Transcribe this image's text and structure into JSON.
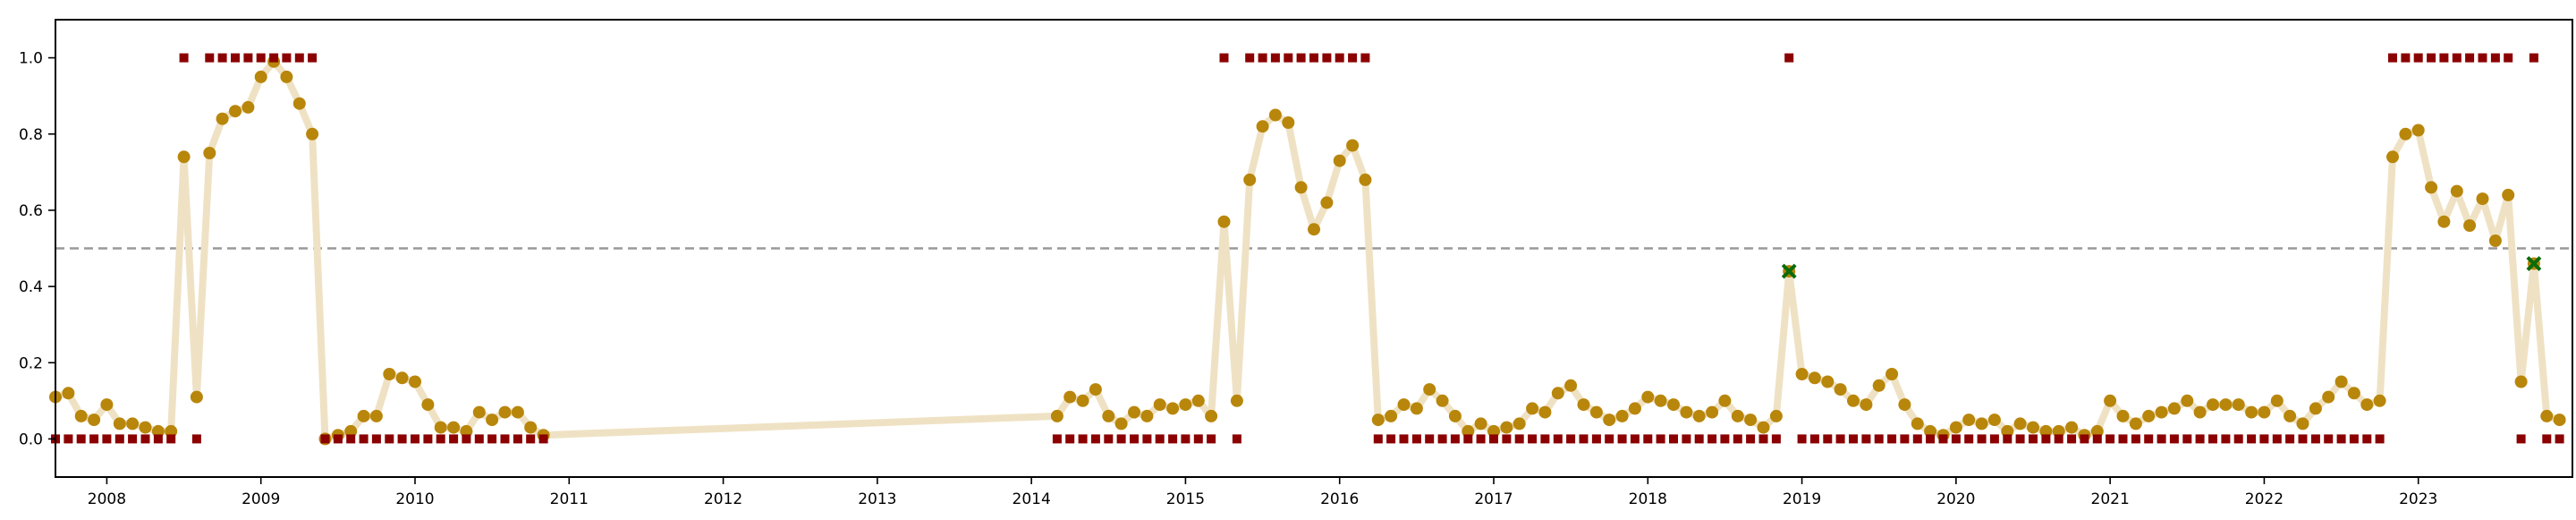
{
  "chart_data": {
    "type": "scatter",
    "title": "",
    "xlabel": "",
    "ylabel": "",
    "x_axis_kind": "date",
    "xlim": [
      "2007-09-01",
      "2023-12-31"
    ],
    "ylim": [
      -0.1,
      1.1
    ],
    "x_ticks": [
      "2008",
      "2009",
      "2010",
      "2011",
      "2012",
      "2013",
      "2014",
      "2015",
      "2016",
      "2017",
      "2018",
      "2019",
      "2020",
      "2021",
      "2022",
      "2023"
    ],
    "y_ticks": [
      "0.0",
      "0.2",
      "0.4",
      "0.6",
      "0.8",
      "1.0"
    ],
    "y_tick_values": [
      0.0,
      0.2,
      0.4,
      0.6,
      0.8,
      1.0
    ],
    "grid": false,
    "legend": "none",
    "threshold": {
      "value": 0.5,
      "style": "dashed",
      "color": "#999999"
    },
    "colors": {
      "line": "#efe2c4",
      "points": "#b8860b",
      "labels": "#8b0000",
      "misclassified": "#0b6b0b"
    },
    "series": [
      {
        "kind": "line",
        "x": [
          "2007-09",
          "2007-10",
          "2007-11",
          "2007-12",
          "2008-01",
          "2008-02",
          "2008-03",
          "2008-04",
          "2008-05",
          "2008-06",
          "2008-07",
          "2008-08",
          "2008-09",
          "2008-10",
          "2008-11",
          "2008-12",
          "2009-01",
          "2009-02",
          "2009-03",
          "2009-04",
          "2009-05",
          "2009-06",
          "2009-07",
          "2009-08",
          "2009-09",
          "2009-10",
          "2009-11",
          "2009-12",
          "2010-01",
          "2010-02",
          "2010-03",
          "2010-04",
          "2010-05",
          "2010-06",
          "2010-07",
          "2010-08",
          "2010-09",
          "2010-10",
          "2010-11",
          "2014-03",
          "2014-04",
          "2014-05",
          "2014-06",
          "2014-07",
          "2014-08",
          "2014-09",
          "2014-10",
          "2014-11",
          "2014-12",
          "2015-01",
          "2015-02",
          "2015-03",
          "2015-04",
          "2015-05",
          "2015-06",
          "2015-07",
          "2015-08",
          "2015-09",
          "2015-10",
          "2015-11",
          "2015-12",
          "2016-01",
          "2016-02",
          "2016-03",
          "2016-04",
          "2016-05",
          "2016-06",
          "2016-07",
          "2016-08",
          "2016-09",
          "2016-10",
          "2016-11",
          "2016-12",
          "2017-01",
          "2017-02",
          "2017-03",
          "2017-04",
          "2017-05",
          "2017-06",
          "2017-07",
          "2017-08",
          "2017-09",
          "2017-10",
          "2017-11",
          "2017-12",
          "2018-01",
          "2018-02",
          "2018-03",
          "2018-04",
          "2018-05",
          "2018-06",
          "2018-07",
          "2018-08",
          "2018-09",
          "2018-10",
          "2018-11",
          "2018-12",
          "2019-01",
          "2019-02",
          "2019-03",
          "2019-04",
          "2019-05",
          "2019-06",
          "2019-07",
          "2019-08",
          "2019-09",
          "2019-10",
          "2019-11",
          "2019-12",
          "2020-01",
          "2020-02",
          "2020-03",
          "2020-04",
          "2020-05",
          "2020-06",
          "2020-07",
          "2020-08",
          "2020-09",
          "2020-10",
          "2020-11",
          "2020-12",
          "2021-01",
          "2021-02",
          "2021-03",
          "2021-04",
          "2021-05",
          "2021-06",
          "2021-07",
          "2021-08",
          "2021-09",
          "2021-10",
          "2021-11",
          "2021-12",
          "2022-01",
          "2022-02",
          "2022-03",
          "2022-04",
          "2022-05",
          "2022-06",
          "2022-07",
          "2022-08",
          "2022-09",
          "2022-10",
          "2022-11",
          "2022-12",
          "2023-01",
          "2023-02",
          "2023-03",
          "2023-04",
          "2023-05",
          "2023-06",
          "2023-07",
          "2023-08",
          "2023-09",
          "2023-10",
          "2023-11",
          "2023-12"
        ],
        "y": [
          0.11,
          0.12,
          0.06,
          0.05,
          0.09,
          0.04,
          0.04,
          0.03,
          0.02,
          0.02,
          0.74,
          0.11,
          0.75,
          0.84,
          0.86,
          0.87,
          0.95,
          0.99,
          0.95,
          0.88,
          0.8,
          0.0,
          0.01,
          0.02,
          0.06,
          0.06,
          0.17,
          0.16,
          0.15,
          0.09,
          0.03,
          0.03,
          0.02,
          0.07,
          0.05,
          0.07,
          0.07,
          0.03,
          0.01,
          0.06,
          0.11,
          0.1,
          0.13,
          0.06,
          0.04,
          0.07,
          0.06,
          0.09,
          0.08,
          0.09,
          0.1,
          0.06,
          0.57,
          0.1,
          0.68,
          0.82,
          0.85,
          0.83,
          0.66,
          0.55,
          0.62,
          0.73,
          0.77,
          0.68,
          0.05,
          0.06,
          0.09,
          0.08,
          0.13,
          0.1,
          0.06,
          0.02,
          0.04,
          0.02,
          0.03,
          0.04,
          0.08,
          0.07,
          0.12,
          0.14,
          0.09,
          0.07,
          0.05,
          0.06,
          0.08,
          0.11,
          0.1,
          0.09,
          0.07,
          0.06,
          0.07,
          0.1,
          0.06,
          0.05,
          0.03,
          0.06,
          0.44,
          0.17,
          0.16,
          0.15,
          0.13,
          0.1,
          0.09,
          0.14,
          0.17,
          0.09,
          0.04,
          0.02,
          0.01,
          0.03,
          0.05,
          0.04,
          0.05,
          0.02,
          0.04,
          0.03,
          0.02,
          0.02,
          0.03,
          0.01,
          0.02,
          0.1,
          0.06,
          0.04,
          0.06,
          0.07,
          0.08,
          0.1,
          0.07,
          0.09,
          0.09,
          0.09,
          0.07,
          0.07,
          0.1,
          0.06,
          0.04,
          0.08,
          0.11,
          0.15,
          0.12,
          0.09,
          0.1,
          0.74,
          0.8,
          0.81,
          0.66,
          0.57,
          0.65,
          0.56,
          0.63,
          0.52,
          0.64,
          0.15,
          0.46,
          0.06,
          0.05
        ]
      },
      {
        "kind": "labels",
        "x": [
          "2007-09",
          "2007-10",
          "2007-11",
          "2007-12",
          "2008-01",
          "2008-02",
          "2008-03",
          "2008-04",
          "2008-05",
          "2008-06",
          "2008-07",
          "2008-08",
          "2008-09",
          "2008-10",
          "2008-11",
          "2008-12",
          "2009-01",
          "2009-02",
          "2009-03",
          "2009-04",
          "2009-05",
          "2009-06",
          "2009-07",
          "2009-08",
          "2009-09",
          "2009-10",
          "2009-11",
          "2009-12",
          "2010-01",
          "2010-02",
          "2010-03",
          "2010-04",
          "2010-05",
          "2010-06",
          "2010-07",
          "2010-08",
          "2010-09",
          "2010-10",
          "2010-11",
          "2014-03",
          "2014-04",
          "2014-05",
          "2014-06",
          "2014-07",
          "2014-08",
          "2014-09",
          "2014-10",
          "2014-11",
          "2014-12",
          "2015-01",
          "2015-02",
          "2015-03",
          "2015-04",
          "2015-05",
          "2015-06",
          "2015-07",
          "2015-08",
          "2015-09",
          "2015-10",
          "2015-11",
          "2015-12",
          "2016-01",
          "2016-02",
          "2016-03",
          "2016-04",
          "2016-05",
          "2016-06",
          "2016-07",
          "2016-08",
          "2016-09",
          "2016-10",
          "2016-11",
          "2016-12",
          "2017-01",
          "2017-02",
          "2017-03",
          "2017-04",
          "2017-05",
          "2017-06",
          "2017-07",
          "2017-08",
          "2017-09",
          "2017-10",
          "2017-11",
          "2017-12",
          "2018-01",
          "2018-02",
          "2018-03",
          "2018-04",
          "2018-05",
          "2018-06",
          "2018-07",
          "2018-08",
          "2018-09",
          "2018-10",
          "2018-11",
          "2018-12",
          "2019-01",
          "2019-02",
          "2019-03",
          "2019-04",
          "2019-05",
          "2019-06",
          "2019-07",
          "2019-08",
          "2019-09",
          "2019-10",
          "2019-11",
          "2019-12",
          "2020-01",
          "2020-02",
          "2020-03",
          "2020-04",
          "2020-05",
          "2020-06",
          "2020-07",
          "2020-08",
          "2020-09",
          "2020-10",
          "2020-11",
          "2020-12",
          "2021-01",
          "2021-02",
          "2021-03",
          "2021-04",
          "2021-05",
          "2021-06",
          "2021-07",
          "2021-08",
          "2021-09",
          "2021-10",
          "2021-11",
          "2021-12",
          "2022-01",
          "2022-02",
          "2022-03",
          "2022-04",
          "2022-05",
          "2022-06",
          "2022-07",
          "2022-08",
          "2022-09",
          "2022-10",
          "2022-11",
          "2022-12",
          "2023-01",
          "2023-02",
          "2023-03",
          "2023-04",
          "2023-05",
          "2023-06",
          "2023-07",
          "2023-08",
          "2023-09",
          "2023-10",
          "2023-11",
          "2023-12"
        ],
        "y": [
          0,
          0,
          0,
          0,
          0,
          0,
          0,
          0,
          0,
          0,
          1,
          0,
          1,
          1,
          1,
          1,
          1,
          1,
          1,
          1,
          1,
          0,
          0,
          0,
          0,
          0,
          0,
          0,
          0,
          0,
          0,
          0,
          0,
          0,
          0,
          0,
          0,
          0,
          0,
          0,
          0,
          0,
          0,
          0,
          0,
          0,
          0,
          0,
          0,
          0,
          0,
          0,
          1,
          0,
          1,
          1,
          1,
          1,
          1,
          1,
          1,
          1,
          1,
          1,
          0,
          0,
          0,
          0,
          0,
          0,
          0,
          0,
          0,
          0,
          0,
          0,
          0,
          0,
          0,
          0,
          0,
          0,
          0,
          0,
          0,
          0,
          0,
          0,
          0,
          0,
          0,
          0,
          0,
          0,
          0,
          0,
          1,
          0,
          0,
          0,
          0,
          0,
          0,
          0,
          0,
          0,
          0,
          0,
          0,
          0,
          0,
          0,
          0,
          0,
          0,
          0,
          0,
          0,
          0,
          0,
          0,
          0,
          0,
          0,
          0,
          0,
          0,
          0,
          0,
          0,
          0,
          0,
          0,
          0,
          0,
          0,
          0,
          0,
          0,
          0,
          0,
          0,
          0,
          1,
          1,
          1,
          1,
          1,
          1,
          1,
          1,
          1,
          1,
          0,
          1,
          0,
          0
        ]
      },
      {
        "kind": "misclassified",
        "x": [
          "2018-12",
          "2023-10"
        ],
        "y": [
          0.44,
          0.46
        ]
      }
    ]
  }
}
